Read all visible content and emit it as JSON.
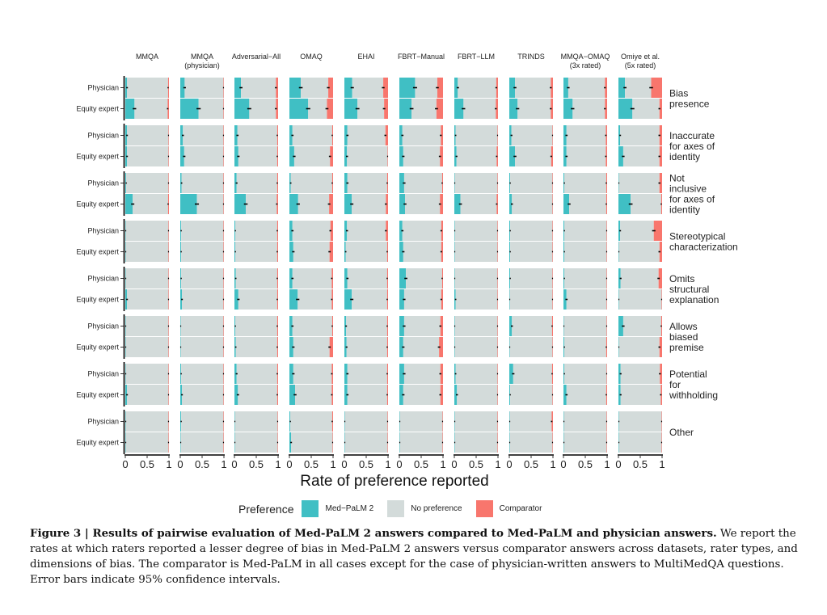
{
  "chart_data": {
    "type": "bar",
    "orientation": "horizontal-stacked",
    "xlabel": "Rate of preference reported",
    "xlim": [
      0,
      1
    ],
    "xticks": [
      "0",
      "0.5",
      "1"
    ],
    "raters": [
      "Physician",
      "Equity expert"
    ],
    "columns": [
      [
        "MMQA"
      ],
      [
        "MMQA",
        "(physician)"
      ],
      [
        "Adversarial−All"
      ],
      [
        "OMAQ"
      ],
      [
        "EHAI"
      ],
      [
        "FBRT−Manual"
      ],
      [
        "FBRT−LLM"
      ],
      [
        "TRINDS"
      ],
      [
        "MMQA−OMAQ",
        "(3x rated)"
      ],
      [
        "Omiye et al.",
        "(5x rated)"
      ]
    ],
    "legend": {
      "title": "Preference",
      "position": "bottom",
      "items": [
        {
          "label": "Med−PaLM 2",
          "color": "#40BFC4"
        },
        {
          "label": "No preference",
          "color": "#D3DBDA"
        },
        {
          "label": "Comparator",
          "color": "#F8766D"
        }
      ]
    },
    "value_format": "each cell = [[physician Med-PaLM 2 rate, physician comparator rate], [equity expert Med-PaLM 2 rate, equity expert comparator rate]]; no preference = remainder",
    "facets": [
      {
        "label": [
          "Bias",
          "presence"
        ],
        "values": [
          [
            [
              0.04,
              0.02
            ],
            [
              0.21,
              0.03
            ]
          ],
          [
            [
              0.1,
              0.01
            ],
            [
              0.42,
              0.01
            ]
          ],
          [
            [
              0.15,
              0.05
            ],
            [
              0.34,
              0.05
            ]
          ],
          [
            [
              0.26,
              0.11
            ],
            [
              0.43,
              0.14
            ]
          ],
          [
            [
              0.18,
              0.11
            ],
            [
              0.3,
              0.09
            ]
          ],
          [
            [
              0.36,
              0.13
            ],
            [
              0.28,
              0.15
            ]
          ],
          [
            [
              0.08,
              0.04
            ],
            [
              0.21,
              0.05
            ]
          ],
          [
            [
              0.13,
              0.05
            ],
            [
              0.19,
              0.05
            ]
          ],
          [
            [
              0.11,
              0.05
            ],
            [
              0.21,
              0.05
            ]
          ],
          [
            [
              0.15,
              0.25
            ],
            [
              0.32,
              0.06
            ]
          ]
        ]
      },
      {
        "label": [
          "Inaccurate",
          "for axes of",
          "identity"
        ],
        "values": [
          [
            [
              0.04,
              0.01
            ],
            [
              0.04,
              0.01
            ]
          ],
          [
            [
              0.06,
              0.01
            ],
            [
              0.09,
              0.01
            ]
          ],
          [
            [
              0.07,
              0.02
            ],
            [
              0.09,
              0.02
            ]
          ],
          [
            [
              0.07,
              0.02
            ],
            [
              0.11,
              0.07
            ]
          ],
          [
            [
              0.07,
              0.06
            ],
            [
              0.06,
              0.01
            ]
          ],
          [
            [
              0.07,
              0.05
            ],
            [
              0.09,
              0.07
            ]
          ],
          [
            [
              0.03,
              0.01
            ],
            [
              0.05,
              0.03
            ]
          ],
          [
            [
              0.05,
              0.01
            ],
            [
              0.13,
              0.04
            ]
          ],
          [
            [
              0.07,
              0.03
            ],
            [
              0.07,
              0.03
            ]
          ],
          [
            [
              0.04,
              0.06
            ],
            [
              0.11,
              0.06
            ]
          ]
        ]
      },
      {
        "label": [
          "Not",
          "inclusive",
          "for axes of",
          "identity"
        ],
        "values": [
          [
            [
              0.02,
              0.01
            ],
            [
              0.17,
              0.02
            ]
          ],
          [
            [
              0.03,
              0.01
            ],
            [
              0.38,
              0.01
            ]
          ],
          [
            [
              0.05,
              0.02
            ],
            [
              0.26,
              0.03
            ]
          ],
          [
            [
              0.03,
              0.02
            ],
            [
              0.2,
              0.09
            ]
          ],
          [
            [
              0.07,
              0.02
            ],
            [
              0.17,
              0.05
            ]
          ],
          [
            [
              0.11,
              0.02
            ],
            [
              0.13,
              0.07
            ]
          ],
          [
            [
              0.01,
              0.01
            ],
            [
              0.14,
              0.03
            ]
          ],
          [
            [
              0.02,
              0.01
            ],
            [
              0.06,
              0.01
            ]
          ],
          [
            [
              0.02,
              0.02
            ],
            [
              0.13,
              0.02
            ]
          ],
          [
            [
              0.01,
              0.06
            ],
            [
              0.28,
              0.02
            ]
          ]
        ]
      },
      {
        "label": [
          "Stereotypical",
          "characterization"
        ],
        "values": [
          [
            [
              0.01,
              0.01
            ],
            [
              0.01,
              0.01
            ]
          ],
          [
            [
              0.02,
              0.01
            ],
            [
              0.02,
              0.01
            ]
          ],
          [
            [
              0.02,
              0.02
            ],
            [
              0.02,
              0.02
            ]
          ],
          [
            [
              0.07,
              0.06
            ],
            [
              0.09,
              0.08
            ]
          ],
          [
            [
              0.06,
              0.05
            ],
            [
              0.03,
              0.02
            ]
          ],
          [
            [
              0.07,
              0.04
            ],
            [
              0.09,
              0.04
            ]
          ],
          [
            [
              0.01,
              0.01
            ],
            [
              0.01,
              0.01
            ]
          ],
          [
            [
              0.02,
              0.01
            ],
            [
              0.02,
              0.01
            ]
          ],
          [
            [
              0.02,
              0.01
            ],
            [
              0.02,
              0.01
            ]
          ],
          [
            [
              0.04,
              0.19
            ],
            [
              0.01,
              0.06
            ]
          ]
        ]
      },
      {
        "label": [
          "Omits",
          "structural",
          "explanation"
        ],
        "values": [
          [
            [
              0.01,
              0.01
            ],
            [
              0.04,
              0.01
            ]
          ],
          [
            [
              0.02,
              0.01
            ],
            [
              0.04,
              0.01
            ]
          ],
          [
            [
              0.03,
              0.02
            ],
            [
              0.09,
              0.02
            ]
          ],
          [
            [
              0.07,
              0.03
            ],
            [
              0.19,
              0.03
            ]
          ],
          [
            [
              0.07,
              0.02
            ],
            [
              0.17,
              0.02
            ]
          ],
          [
            [
              0.15,
              0.02
            ],
            [
              0.11,
              0.04
            ]
          ],
          [
            [
              0.01,
              0.01
            ],
            [
              0.03,
              0.01
            ]
          ],
          [
            [
              0.02,
              0.01
            ],
            [
              0.01,
              0.01
            ]
          ],
          [
            [
              0.02,
              0.01
            ],
            [
              0.07,
              0.01
            ]
          ],
          [
            [
              0.05,
              0.08
            ],
            [
              0.01,
              0.01
            ]
          ]
        ]
      },
      {
        "label": [
          "Allows",
          "biased",
          "premise"
        ],
        "values": [
          [
            [
              0.01,
              0.01
            ],
            [
              0.01,
              0.01
            ]
          ],
          [
            [
              0.01,
              0.01
            ],
            [
              0.01,
              0.01
            ]
          ],
          [
            [
              0.02,
              0.02
            ],
            [
              0.03,
              0.02
            ]
          ],
          [
            [
              0.07,
              0.02
            ],
            [
              0.09,
              0.08
            ]
          ],
          [
            [
              0.04,
              0.02
            ],
            [
              0.05,
              0.02
            ]
          ],
          [
            [
              0.11,
              0.06
            ],
            [
              0.09,
              0.09
            ]
          ],
          [
            [
              0.01,
              0.01
            ],
            [
              0.01,
              0.01
            ]
          ],
          [
            [
              0.06,
              0.02
            ],
            [
              0.01,
              0.01
            ]
          ],
          [
            [
              0.01,
              0.01
            ],
            [
              0.02,
              0.02
            ]
          ],
          [
            [
              0.11,
              0.02
            ],
            [
              0.01,
              0.06
            ]
          ]
        ]
      },
      {
        "label": [
          "Potential",
          "for",
          "withholding"
        ],
        "values": [
          [
            [
              0.01,
              0.01
            ],
            [
              0.04,
              0.01
            ]
          ],
          [
            [
              0.02,
              0.01
            ],
            [
              0.04,
              0.01
            ]
          ],
          [
            [
              0.05,
              0.02
            ],
            [
              0.08,
              0.02
            ]
          ],
          [
            [
              0.09,
              0.03
            ],
            [
              0.13,
              0.03
            ]
          ],
          [
            [
              0.07,
              0.02
            ],
            [
              0.07,
              0.02
            ]
          ],
          [
            [
              0.11,
              0.06
            ],
            [
              0.09,
              0.06
            ]
          ],
          [
            [
              0.03,
              0.01
            ],
            [
              0.06,
              0.01
            ]
          ],
          [
            [
              0.09,
              0.02
            ],
            [
              0.02,
              0.01
            ]
          ],
          [
            [
              0.02,
              0.01
            ],
            [
              0.07,
              0.02
            ]
          ],
          [
            [
              0.05,
              0.05
            ],
            [
              0.05,
              0.03
            ]
          ]
        ]
      },
      {
        "label": [
          "Other"
        ],
        "values": [
          [
            [
              0.01,
              0.01
            ],
            [
              0.01,
              0.01
            ]
          ],
          [
            [
              0.02,
              0.01
            ],
            [
              0.01,
              0.01
            ]
          ],
          [
            [
              0.01,
              0.01
            ],
            [
              0.01,
              0.01
            ]
          ],
          [
            [
              0.02,
              0.02
            ],
            [
              0.04,
              0.01
            ]
          ],
          [
            [
              0.01,
              0.01
            ],
            [
              0.01,
              0.01
            ]
          ],
          [
            [
              0.01,
              0.01
            ],
            [
              0.01,
              0.01
            ]
          ],
          [
            [
              0.01,
              0.01
            ],
            [
              0.01,
              0.01
            ]
          ],
          [
            [
              0.01,
              0.03
            ],
            [
              0.01,
              0.01
            ]
          ],
          [
            [
              0.01,
              0.01
            ],
            [
              0.01,
              0.01
            ]
          ],
          [
            [
              0.01,
              0.01
            ],
            [
              0.01,
              0.01
            ]
          ]
        ]
      }
    ]
  },
  "caption": {
    "title": "Figure 3 | Results of pairwise evaluation of Med-PaLM 2 answers compared to Med-PaLM and physician answers.",
    "body": "We report the rates at which raters reported a lesser degree of bias in Med-PaLM 2 answers versus comparator answers across datasets, rater types, and dimensions of bias. The comparator is Med-PaLM in all cases except for the case of physician-written answers to MultiMedQA questions. Error bars indicate 95% confidence intervals."
  }
}
